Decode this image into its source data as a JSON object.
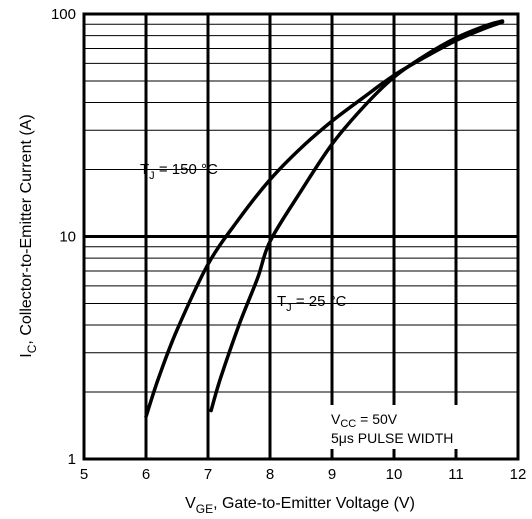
{
  "chart_data": {
    "type": "line",
    "title": "",
    "xlabel": {
      "sym": "V",
      "sub": "GE",
      "rest": ", Gate-to-Emitter Voltage (V)"
    },
    "ylabel": {
      "sym": "I",
      "sub": "C",
      "rest": ",  Collector-to-Emitter Current (A)"
    },
    "xlim": [
      5,
      12
    ],
    "ylim": [
      1,
      100
    ],
    "yscale": "log",
    "grid": true,
    "x_ticks": [
      5,
      6,
      7,
      8,
      9,
      10,
      11,
      12
    ],
    "x_tick_labels": [
      "5",
      "6",
      "7",
      "8",
      "9",
      "10",
      "11",
      "12"
    ],
    "y_tick_labels": [
      "1",
      "10",
      "100"
    ],
    "y_tick_values": [
      1,
      10,
      100
    ],
    "series": [
      {
        "name": {
          "sym": "T",
          "sub": "J",
          "rest": " = 150 °C"
        },
        "points": [
          [
            6.0,
            1.55
          ],
          [
            6.2,
            2.3
          ],
          [
            6.5,
            3.8
          ],
          [
            7.0,
            7.5
          ],
          [
            7.5,
            12.0
          ],
          [
            8.0,
            18.0
          ],
          [
            8.5,
            25.0
          ],
          [
            9.0,
            33.0
          ],
          [
            9.5,
            42.0
          ],
          [
            10.0,
            53.0
          ],
          [
            10.5,
            64.0
          ],
          [
            11.0,
            76.0
          ],
          [
            11.5,
            87.0
          ],
          [
            11.75,
            92.0
          ]
        ]
      },
      {
        "name": {
          "sym": "T",
          "sub": "J",
          "rest": " = 25 °C"
        },
        "points": [
          [
            7.05,
            1.65
          ],
          [
            7.2,
            2.3
          ],
          [
            7.5,
            4.0
          ],
          [
            7.8,
            6.5
          ],
          [
            8.0,
            9.5
          ],
          [
            8.5,
            16.0
          ],
          [
            9.0,
            26.0
          ],
          [
            9.5,
            38.0
          ],
          [
            10.0,
            52.0
          ],
          [
            10.5,
            65.0
          ],
          [
            11.0,
            78.0
          ],
          [
            11.5,
            89.0
          ],
          [
            11.75,
            93.0
          ]
        ]
      }
    ],
    "annotations": {
      "vcc": {
        "sym": "V",
        "sub": "CC",
        "rest": " = 50V"
      },
      "pulse": "5μs PULSE WIDTH"
    }
  }
}
